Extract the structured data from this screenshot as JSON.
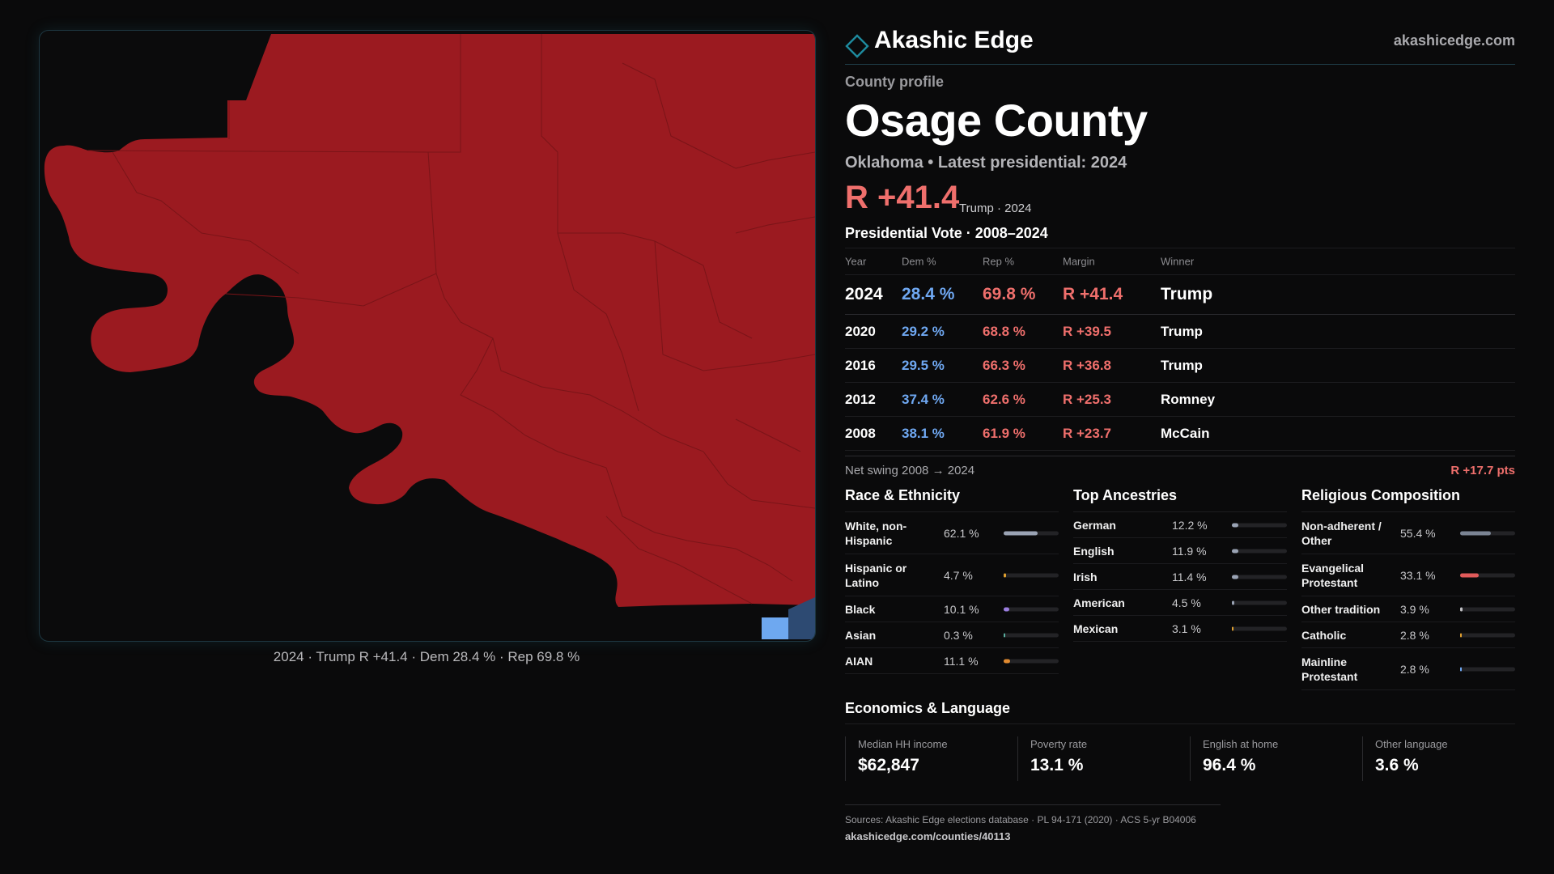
{
  "brand": {
    "name": "Akashic Edge",
    "url": "akashicedge.com",
    "logo_icon": "diamond-outline-icon",
    "accent": "#1e8a9e"
  },
  "profile": {
    "kicker": "County profile",
    "county": "Osage County",
    "subtitle": "Oklahoma • Latest presidential: 2024",
    "margin": "R +41.4",
    "margin_note": "Trump · 2024"
  },
  "map": {
    "caption": "2024 · Trump R +41.4 · Dem 28.4 % · Rep 69.8 %",
    "colors": {
      "republican": "#9b1a20",
      "democrat": "#6ea8f0",
      "other_blue": "#2d4a72",
      "background": "#0b0b0c"
    }
  },
  "vote": {
    "title": "Presidential Vote · 2008–2024",
    "headers": {
      "year": "Year",
      "dem": "Dem %",
      "rep": "Rep %",
      "margin": "Margin",
      "winner": "Winner"
    },
    "rows": [
      {
        "year": "2024",
        "dem": "28.4 %",
        "rep": "69.8 %",
        "margin": "R +41.4",
        "winner": "Trump"
      },
      {
        "year": "2020",
        "dem": "29.2 %",
        "rep": "68.8 %",
        "margin": "R +39.5",
        "winner": "Trump"
      },
      {
        "year": "2016",
        "dem": "29.5 %",
        "rep": "66.3 %",
        "margin": "R +36.8",
        "winner": "Trump"
      },
      {
        "year": "2012",
        "dem": "37.4 %",
        "rep": "62.6 %",
        "margin": "R +25.3",
        "winner": "Romney"
      },
      {
        "year": "2008",
        "dem": "38.1 %",
        "rep": "61.9 %",
        "margin": "R +23.7",
        "winner": "McCain"
      }
    ],
    "swing_label": "Net swing 2008 → 2024",
    "swing_value": "R +17.7 pts"
  },
  "race": {
    "title": "Race & Ethnicity",
    "items": [
      {
        "label": "White, non-Hispanic",
        "value": "62.1 %",
        "pct": 62.1,
        "color": "#9aa3b4"
      },
      {
        "label": "Hispanic or Latino",
        "value": "4.7 %",
        "pct": 4.7,
        "color": "#e0a030"
      },
      {
        "label": "Black",
        "value": "10.1 %",
        "pct": 10.1,
        "color": "#9b7ee0"
      },
      {
        "label": "Asian",
        "value": "0.3 %",
        "pct": 0.3,
        "color": "#5ab0a0"
      },
      {
        "label": "AIAN",
        "value": "11.1 %",
        "pct": 11.1,
        "color": "#e08a30"
      }
    ]
  },
  "ancestry": {
    "title": "Top Ancestries",
    "items": [
      {
        "label": "German",
        "value": "12.2 %",
        "pct": 12.2,
        "color": "#9aa3b4"
      },
      {
        "label": "English",
        "value": "11.9 %",
        "pct": 11.9,
        "color": "#9aa3b4"
      },
      {
        "label": "Irish",
        "value": "11.4 %",
        "pct": 11.4,
        "color": "#9aa3b4"
      },
      {
        "label": "American",
        "value": "4.5 %",
        "pct": 4.5,
        "color": "#9aa3b4"
      },
      {
        "label": "Mexican",
        "value": "3.1 %",
        "pct": 3.1,
        "color": "#e0a030"
      }
    ]
  },
  "religion": {
    "title": "Religious Composition",
    "items": [
      {
        "label": "Non-adherent / Other",
        "value": "55.4 %",
        "pct": 55.4,
        "color": "#7b8494"
      },
      {
        "label": "Evangelical Protestant",
        "value": "33.1 %",
        "pct": 33.1,
        "color": "#e05a5a"
      },
      {
        "label": "Other tradition",
        "value": "3.9 %",
        "pct": 3.9,
        "color": "#c0c0c4"
      },
      {
        "label": "Catholic",
        "value": "2.8 %",
        "pct": 2.8,
        "color": "#e0a030"
      },
      {
        "label": "Mainline Protestant",
        "value": "2.8 %",
        "pct": 2.8,
        "color": "#6fa8f2"
      }
    ]
  },
  "economics": {
    "title": "Economics & Language",
    "cards": [
      {
        "label": "Median HH income",
        "value": "$62,847"
      },
      {
        "label": "Poverty rate",
        "value": "13.1 %"
      },
      {
        "label": "English at home",
        "value": "96.4 %"
      },
      {
        "label": "Other language",
        "value": "3.6 %"
      }
    ]
  },
  "sources": {
    "text": "Sources: Akashic Edge elections database · PL 94-171 (2020) · ACS 5-yr B04006",
    "url": "akashicedge.com/counties/40113"
  }
}
